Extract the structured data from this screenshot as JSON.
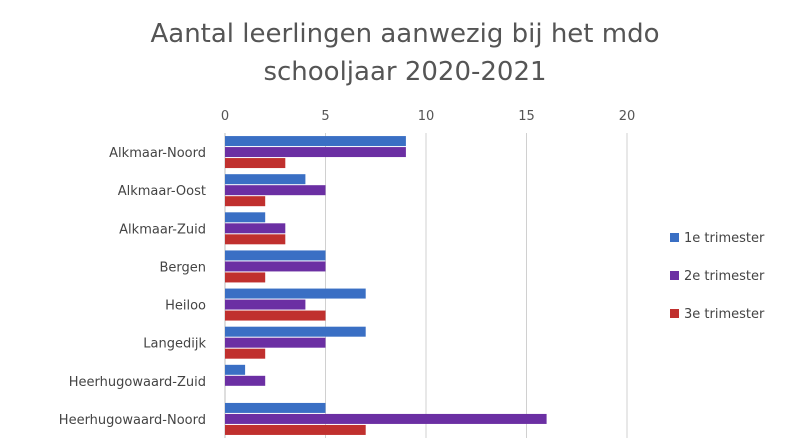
{
  "chart_data": {
    "type": "bar",
    "orientation": "horizontal",
    "title": [
      "Aantal leerlingen aanwezig bij het mdo",
      "schooljaar 2020-2021"
    ],
    "categories": [
      "Alkmaar-Noord",
      "Alkmaar-Oost",
      "Alkmaar-Zuid",
      "Bergen",
      "Heiloo",
      "Langedijk",
      "Heerhugowaard-Zuid",
      "Heerhugowaard-Noord"
    ],
    "series": [
      {
        "name": "1e trimester",
        "color": "#3a6fc4",
        "values": [
          9,
          4,
          2,
          5,
          7,
          7,
          1,
          5
        ]
      },
      {
        "name": "2e trimester",
        "color": "#6b2fa3",
        "values": [
          9,
          5,
          3,
          5,
          4,
          5,
          2,
          16
        ]
      },
      {
        "name": "3e trimester",
        "color": "#c0302e",
        "values": [
          3,
          2,
          3,
          2,
          5,
          2,
          0,
          7
        ]
      }
    ],
    "xlim": [
      0,
      20
    ],
    "xticks": [
      "0",
      "5",
      "10",
      "15",
      "20"
    ],
    "xaxis_position": "top",
    "grid": true,
    "legend_position": "right"
  }
}
